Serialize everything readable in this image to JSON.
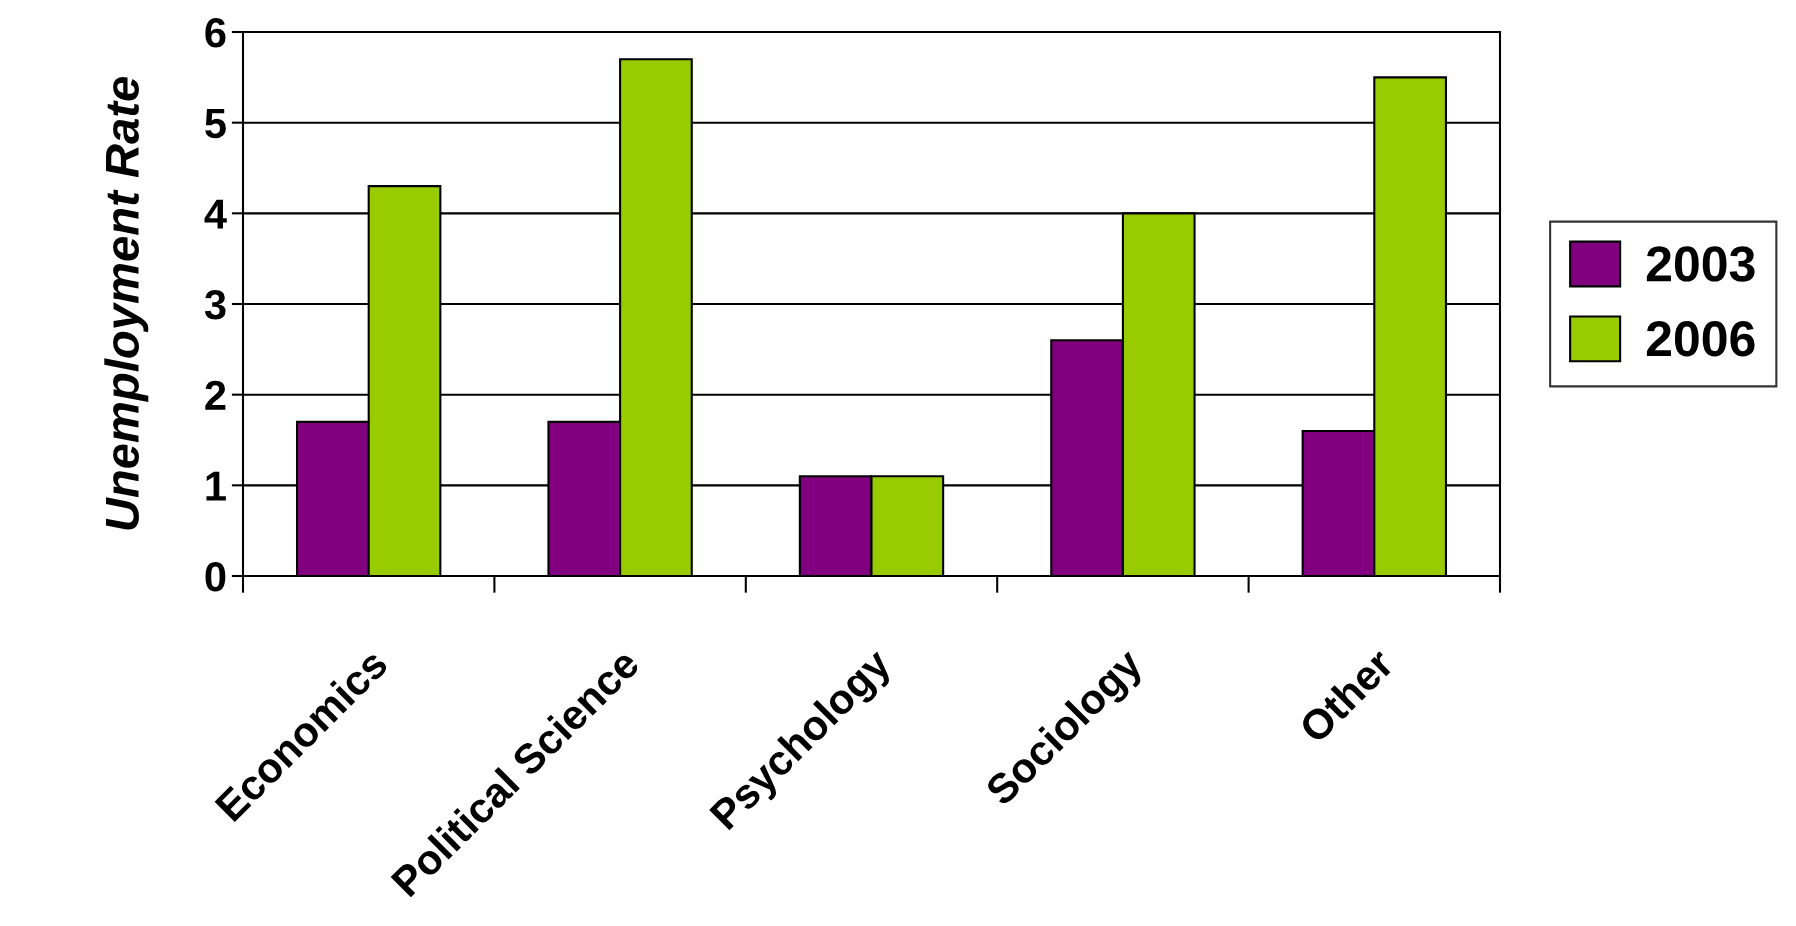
{
  "chart_data": {
    "type": "bar",
    "ylabel": "Unemployment Rate",
    "categories": [
      "Economics",
      "Political Science",
      "Psychology",
      "Sociology",
      "Other"
    ],
    "series": [
      {
        "name": "2003",
        "color": "#800080",
        "values": [
          1.7,
          1.7,
          1.1,
          2.6,
          1.6
        ]
      },
      {
        "name": "2006",
        "color": "#99cc00",
        "values": [
          4.3,
          5.7,
          1.1,
          4.0,
          5.5
        ]
      }
    ],
    "ylim": [
      0,
      6
    ],
    "yticks": [
      0,
      1,
      2,
      3,
      4,
      5,
      6
    ],
    "grid": "y",
    "legend": "right"
  }
}
